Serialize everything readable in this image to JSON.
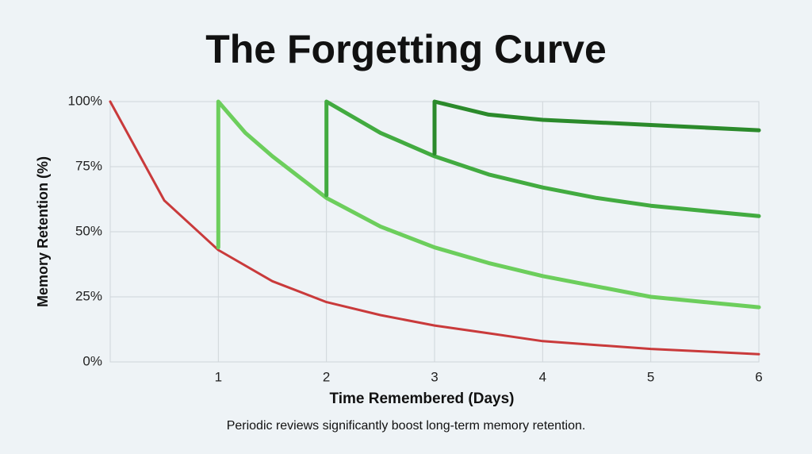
{
  "chart_data": {
    "type": "line",
    "title": "The Forgetting Curve",
    "caption": "Periodic reviews significantly boost long-term memory retention.",
    "x_label": "Time Remembered (Days)",
    "y_label": "Memory Retention (%)",
    "xlim": [
      0,
      6
    ],
    "xticks": [
      1,
      2,
      3,
      4,
      5,
      6
    ],
    "ylim": [
      0,
      100
    ],
    "yticks": [
      {
        "value": 0,
        "label": "0%"
      },
      {
        "value": 25,
        "label": "25%"
      },
      {
        "value": 50,
        "label": "50%"
      },
      {
        "value": 75,
        "label": "75%"
      },
      {
        "value": 100,
        "label": "100%"
      }
    ],
    "grid": true,
    "series": [
      {
        "color": "#c93a3b",
        "x": [
          0,
          0.5,
          1,
          1.5,
          2,
          2.5,
          3,
          3.5,
          4,
          4.5,
          5,
          5.5,
          6
        ],
        "values": [
          100,
          62,
          43,
          31,
          23,
          18,
          14,
          11,
          8,
          6.5,
          5,
          4,
          3
        ]
      },
      {
        "color": "#6cce5c",
        "x": [
          1,
          1,
          1.25,
          1.5,
          2,
          2.5,
          3,
          3.5,
          4,
          4.5,
          5,
          5.5,
          6
        ],
        "values": [
          44,
          100,
          88,
          79,
          63,
          52,
          44,
          38,
          33,
          29,
          25,
          23,
          21
        ]
      },
      {
        "color": "#42ab40",
        "x": [
          2,
          2,
          2.5,
          3,
          3.5,
          4,
          4.5,
          5,
          5.5,
          6
        ],
        "values": [
          64,
          100,
          88,
          79,
          72,
          67,
          63,
          60,
          58,
          56
        ]
      },
      {
        "color": "#2b8a2b",
        "x": [
          3,
          3,
          3.5,
          4,
          4.5,
          5,
          5.5,
          6
        ],
        "values": [
          80,
          100,
          95,
          93,
          92,
          91,
          90,
          89
        ]
      }
    ]
  }
}
